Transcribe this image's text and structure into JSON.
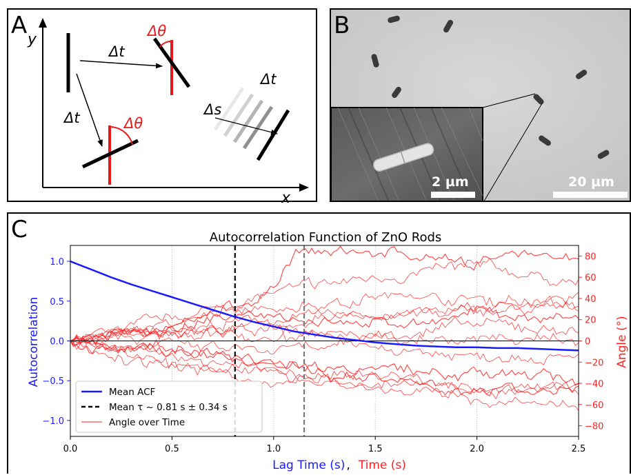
{
  "figure": {
    "panels": {
      "a": {
        "label": "A"
      },
      "b": {
        "label": "B"
      },
      "c": {
        "label": "C"
      }
    }
  },
  "diagram": {
    "axis_x": "x",
    "axis_y": "y",
    "delta_t": "Δt",
    "delta_theta": "Δθ",
    "delta_s": "Δs",
    "colors": {
      "rod": "#000000",
      "rotated": "#e8191a"
    }
  },
  "micrograph": {
    "scalebar_main": "20 µm",
    "scalebar_inset": "2 µm"
  },
  "chart_data": {
    "type": "line",
    "title": "Autocorrelation Function of ZnO Rods",
    "xlabel_parts": [
      "Lag Time (s)",
      ",",
      "Time (s)"
    ],
    "ylabel_left": "Autocorrelation",
    "ylabel_right": "Angle (°)",
    "xlim": [
      0,
      2.5
    ],
    "ylim_left": [
      -1.2,
      1.2
    ],
    "ylim_right": [
      -90,
      90
    ],
    "x_ticks": [
      "0.0",
      "0.5",
      "1.0",
      "1.5",
      "2.0",
      "2.5"
    ],
    "y_left_ticks": [
      "−1.0",
      "−0.5",
      "0.0",
      "0.5",
      "1.0"
    ],
    "y_right_ticks": [
      "−80",
      "−60",
      "−40",
      "−20",
      "0",
      "20",
      "40",
      "60",
      "80"
    ],
    "grid": "vertical-dotted",
    "legend": {
      "placement": "lower-left",
      "entries": [
        "Mean ACF",
        "Mean τ ~ 0.81 s ± 0.34 s",
        "Angle over Time"
      ]
    },
    "mean_tau": 0.81,
    "tau_upper": 1.15,
    "mean_acf": {
      "x": [
        0.0,
        0.1,
        0.2,
        0.3,
        0.4,
        0.5,
        0.6,
        0.7,
        0.8,
        0.9,
        1.0,
        1.1,
        1.2,
        1.3,
        1.4,
        1.5,
        1.6,
        1.7,
        1.8,
        1.9,
        2.0,
        2.1,
        2.2,
        2.3,
        2.4,
        2.5
      ],
      "y": [
        1.0,
        0.9,
        0.8,
        0.71,
        0.63,
        0.55,
        0.47,
        0.39,
        0.31,
        0.24,
        0.18,
        0.12,
        0.08,
        0.04,
        0.01,
        -0.02,
        -0.04,
        -0.06,
        -0.07,
        -0.08,
        -0.08,
        -0.09,
        -0.09,
        -0.1,
        -0.11,
        -0.12
      ]
    },
    "angle_series": [
      {
        "x": [
          0,
          0.5,
          1.0,
          1.1,
          1.5,
          2.0,
          2.5
        ],
        "y": [
          0,
          15,
          45,
          80,
          85,
          75,
          80
        ]
      },
      {
        "x": [
          0,
          0.5,
          1.0,
          1.5,
          2.0,
          2.5
        ],
        "y": [
          0,
          20,
          45,
          60,
          70,
          55
        ]
      },
      {
        "x": [
          0,
          0.5,
          1.0,
          1.5,
          2.0,
          2.5
        ],
        "y": [
          0,
          20,
          30,
          42,
          40,
          35
        ]
      },
      {
        "x": [
          0,
          0.5,
          1.0,
          1.5,
          2.0,
          2.5
        ],
        "y": [
          0,
          10,
          20,
          25,
          28,
          30
        ]
      },
      {
        "x": [
          0,
          0.5,
          1.0,
          1.5,
          2.0,
          2.5
        ],
        "y": [
          0,
          12,
          25,
          15,
          25,
          20
        ]
      },
      {
        "x": [
          0,
          0.5,
          1.0,
          1.5,
          2.0,
          2.5
        ],
        "y": [
          0,
          5,
          10,
          5,
          15,
          10
        ]
      },
      {
        "x": [
          0,
          0.5,
          1.0,
          1.5,
          2.0,
          2.5
        ],
        "y": [
          0,
          15,
          5,
          0,
          5,
          0
        ]
      },
      {
        "x": [
          0,
          0.5,
          1.0,
          1.5,
          2.0,
          2.5
        ],
        "y": [
          0,
          -5,
          -10,
          -5,
          -15,
          -10
        ]
      },
      {
        "x": [
          0,
          0.5,
          1.0,
          1.5,
          2.0,
          2.5
        ],
        "y": [
          0,
          -10,
          -20,
          -25,
          -30,
          -35
        ]
      },
      {
        "x": [
          0,
          0.5,
          1.0,
          1.5,
          2.0,
          2.5
        ],
        "y": [
          0,
          -20,
          -30,
          -40,
          -45,
          -40
        ]
      },
      {
        "x": [
          0,
          0.5,
          1.0,
          1.5,
          2.0,
          2.5
        ],
        "y": [
          0,
          -25,
          -40,
          -30,
          -50,
          -45
        ]
      },
      {
        "x": [
          0,
          0.5,
          1.0,
          1.5,
          2.0,
          2.5
        ],
        "y": [
          0,
          -15,
          -30,
          -45,
          -55,
          -65
        ]
      },
      {
        "x": [
          0,
          0.5,
          1.0,
          1.5,
          2.0,
          2.5
        ],
        "y": [
          0,
          -10,
          -25,
          -35,
          -45,
          -50
        ]
      },
      {
        "x": [
          0,
          0.5,
          1.0,
          1.5,
          2.0,
          2.5
        ],
        "y": [
          0,
          5,
          15,
          25,
          30,
          40
        ]
      }
    ],
    "colors": {
      "acf": "#1a1aff",
      "angle": "#ff2020",
      "tau": "#000000",
      "tau_upper": "#777777",
      "zero": "#000000",
      "grid": "#b0b0b0"
    }
  }
}
